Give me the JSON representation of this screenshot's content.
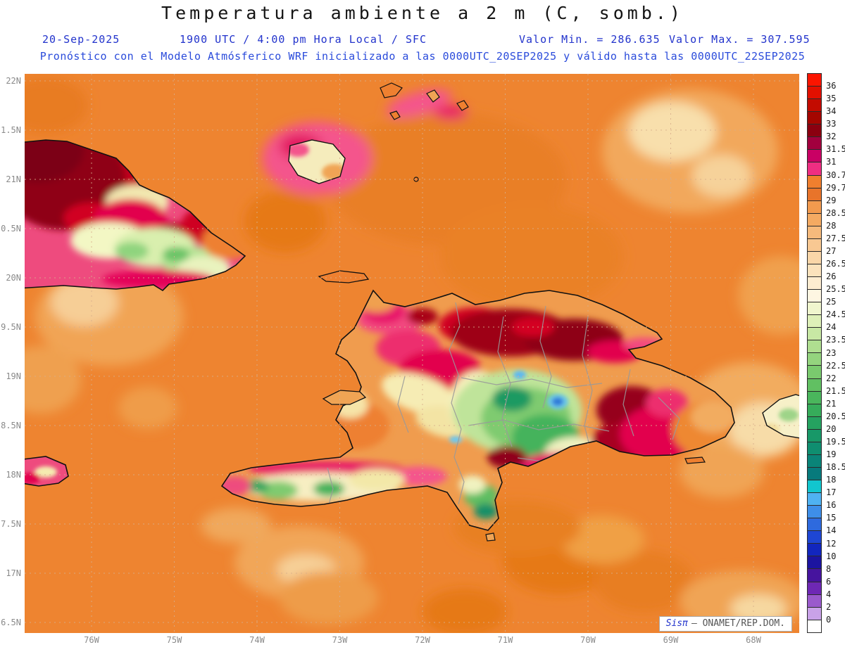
{
  "header": {
    "title": "Temperatura ambiente a 2 m (C, somb.)",
    "date": "20-Sep-2025",
    "time": "1900 UTC / 4:00 pm Hora Local / SFC",
    "min": "Valor Min. = 286.635",
    "max": "Valor Max. = 307.595",
    "forecast": "Pronóstico con el Modelo Atmósferico WRF inicializado a las 0000UTC_20SEP2025 y válido hasta las  0000UTC_22SEP2025"
  },
  "axes": {
    "lat": [
      "22N",
      "1.5N",
      "21N",
      "0.5N",
      "20N",
      "9.5N",
      "19N",
      "8.5N",
      "18N",
      "7.5N",
      "17N",
      "6.5N"
    ],
    "lon": [
      "76W",
      "75W",
      "74W",
      "73W",
      "72W",
      "71W",
      "70W",
      "69W",
      "68W"
    ]
  },
  "legend": {
    "labels": [
      "36",
      "35",
      "34",
      "33",
      "32",
      "31.5",
      "31",
      "30.7",
      "29.7",
      "29",
      "28.5",
      "28",
      "27.5",
      "27",
      "26.5",
      "26",
      "25.5",
      "25",
      "24.5",
      "24",
      "23.5",
      "23",
      "22.5",
      "22",
      "21.5",
      "21",
      "20.5",
      "20",
      "19.5",
      "19",
      "18.5",
      "18",
      "17",
      "16",
      "15",
      "14",
      "12",
      "10",
      "8",
      "6",
      "4",
      "2",
      "0"
    ],
    "colors": [
      "#FB1500",
      "#E21000",
      "#C30B00",
      "#A40600",
      "#8B0010",
      "#A2003E",
      "#C90064",
      "#EF2E82",
      "#F07F2E",
      "#E8742A",
      "#F29A4E",
      "#F4AA62",
      "#F6BA7C",
      "#F8C892",
      "#FAD6A8",
      "#FBE2BC",
      "#FDECD0",
      "#FEF6E2",
      "#F0F6CE",
      "#DEF0B8",
      "#C8E8A4",
      "#AFDE90",
      "#94D47E",
      "#7ACA6E",
      "#61C062",
      "#4AB65C",
      "#36AC5A",
      "#25A260",
      "#189868",
      "#0F8E70",
      "#0A8478",
      "#077A7C",
      "#12C6CE",
      "#4FB2F2",
      "#3E8EE8",
      "#2E6ADE",
      "#1E46D4",
      "#1226BE",
      "#1C14A0",
      "#46149E",
      "#6E28B4",
      "#9A5ACC",
      "#C9A2E8",
      "#FFFFFF"
    ]
  },
  "watermark": {
    "brand": "Sisπ",
    "text": "– ONAMET/REP.DOM."
  },
  "palette": {
    "ocean": "#EE8430",
    "header_blue": "#2233CC",
    "axis_gray": "#8A8A8A"
  }
}
